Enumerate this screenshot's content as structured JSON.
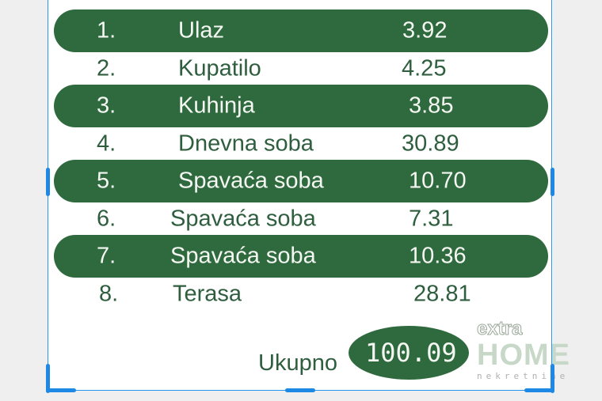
{
  "rows": [
    {
      "num": "1.",
      "name": "Ulaz",
      "value": "3.92"
    },
    {
      "num": "2.",
      "name": "Kupatilo",
      "value": "4.25"
    },
    {
      "num": "3.",
      "name": "Kuhinja",
      "value": "3.85"
    },
    {
      "num": "4.",
      "name": "Dnevna soba",
      "value": "30.89"
    },
    {
      "num": "5.",
      "name": "Spavaća soba",
      "value": "10.70"
    },
    {
      "num": "6.",
      "name": "Spavaća soba",
      "value": "7.31"
    },
    {
      "num": "7.",
      "name": "Spavaća soba",
      "value": "10.36"
    },
    {
      "num": "8.",
      "name": "Terasa",
      "value": "28.81"
    }
  ],
  "total": {
    "label": "Ukupno",
    "value": "100.09"
  },
  "watermark": {
    "text1": "extra",
    "text2": "HOME",
    "text3": "nekretnine"
  },
  "colors": {
    "pill": "#2e6a3e",
    "text": "#2f5e3f",
    "selection": "#1e88e5"
  }
}
